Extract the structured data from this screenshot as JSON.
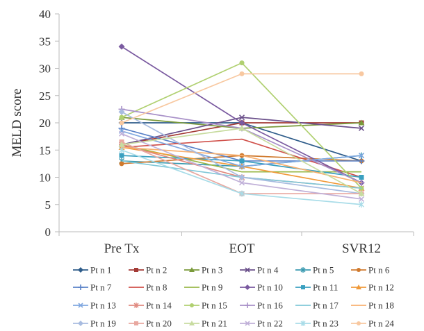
{
  "chart_data": {
    "type": "line",
    "title": "",
    "xlabel": "",
    "ylabel": "MELD score",
    "categories": [
      "Pre Tx",
      "EOT",
      "SVR12"
    ],
    "ylim": [
      0,
      40
    ],
    "yticks": [
      0,
      5,
      10,
      15,
      20,
      25,
      30,
      35,
      40
    ],
    "grid": false,
    "legend_position": "bottom",
    "series": [
      {
        "name": "Pt n 1",
        "values": [
          20,
          20,
          13
        ],
        "color": "#2e5c8a",
        "marker": "diamond"
      },
      {
        "name": "Pt n 2",
        "values": [
          16,
          20,
          20
        ],
        "color": "#a33a35",
        "marker": "square"
      },
      {
        "name": "Pt n 3",
        "values": [
          21,
          19,
          20
        ],
        "color": "#7a9a3a",
        "marker": "triangle"
      },
      {
        "name": "Pt n 4",
        "values": [
          16,
          21,
          19
        ],
        "color": "#6a4f8a",
        "marker": "x"
      },
      {
        "name": "Pt n 5",
        "values": [
          13,
          12,
          14
        ],
        "color": "#3a9ab0",
        "marker": "star"
      },
      {
        "name": "Pt n 6",
        "values": [
          12.5,
          14,
          13
        ],
        "color": "#d07a2e",
        "marker": "circle"
      },
      {
        "name": "Pt n 7",
        "values": [
          19,
          13,
          13
        ],
        "color": "#5a82c8",
        "marker": "plus"
      },
      {
        "name": "Pt n 8",
        "values": [
          15.5,
          17,
          10
        ],
        "color": "#d0504a",
        "marker": "none"
      },
      {
        "name": "Pt n 9",
        "values": [
          16,
          11,
          11
        ],
        "color": "#9ab84a",
        "marker": "none"
      },
      {
        "name": "Pt n 10",
        "values": [
          34,
          20,
          9
        ],
        "color": "#7a5aa0",
        "marker": "diamond"
      },
      {
        "name": "Pt n 11",
        "values": [
          14,
          13,
          10
        ],
        "color": "#3aa0c0",
        "marker": "square"
      },
      {
        "name": "Pt n 12",
        "values": [
          15.5,
          12,
          8
        ],
        "color": "#f09a3a",
        "marker": "triangle"
      },
      {
        "name": "Pt n 13",
        "values": [
          18.5,
          12,
          14
        ],
        "color": "#80a8e0",
        "marker": "x"
      },
      {
        "name": "Pt n 14",
        "values": [
          16,
          10,
          8
        ],
        "color": "#e08a80",
        "marker": "star"
      },
      {
        "name": "Pt n 15",
        "values": [
          21,
          31,
          8
        ],
        "color": "#b0d070",
        "marker": "circle"
      },
      {
        "name": "Pt n 16",
        "values": [
          22.5,
          19,
          9
        ],
        "color": "#a890c8",
        "marker": "plus"
      },
      {
        "name": "Pt n 17",
        "values": [
          13,
          10,
          8
        ],
        "color": "#80c8d8",
        "marker": "none"
      },
      {
        "name": "Pt n 18",
        "values": [
          15.5,
          14,
          9
        ],
        "color": "#f8b070",
        "marker": "none"
      },
      {
        "name": "Pt n 19",
        "values": [
          22,
          10,
          7
        ],
        "color": "#a8bce0",
        "marker": "diamond"
      },
      {
        "name": "Pt n 20",
        "values": [
          16.5,
          7,
          7
        ],
        "color": "#e8a8a0",
        "marker": "square"
      },
      {
        "name": "Pt n 21",
        "values": [
          16,
          19,
          7
        ],
        "color": "#c8dca0",
        "marker": "triangle"
      },
      {
        "name": "Pt n 22",
        "values": [
          18,
          9,
          6
        ],
        "color": "#c0b0d8",
        "marker": "x"
      },
      {
        "name": "Pt n 23",
        "values": [
          15,
          7,
          5
        ],
        "color": "#a8dce8",
        "marker": "star"
      },
      {
        "name": "Pt n 24",
        "values": [
          20,
          29,
          29
        ],
        "color": "#f8c8a0",
        "marker": "circle"
      }
    ]
  }
}
